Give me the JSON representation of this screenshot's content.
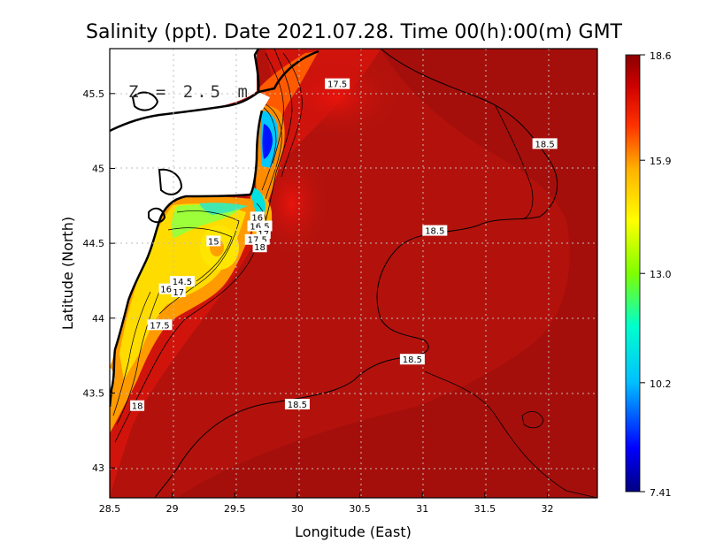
{
  "title": "Salinity (ppt). Date 2021.07.28. Time 00(h):00(m) GMT",
  "depth_label": "Z = 2.5 m",
  "xlabel": "Longitude (East)",
  "ylabel": "Latitude (North)",
  "chart_data": {
    "type": "heatmap",
    "title": "Salinity (ppt). Date 2021.07.28. Time 00(h):00(m) GMT",
    "xlabel": "Longitude (East)",
    "ylabel": "Latitude (North)",
    "xlim": [
      28.5,
      32.4
    ],
    "ylim": [
      42.8,
      45.8
    ],
    "x_ticks": [
      "28.5",
      "29",
      "29.5",
      "30",
      "30.5",
      "31",
      "31.5",
      "32"
    ],
    "y_ticks": [
      "43",
      "43.5",
      "44",
      "44.5",
      "45",
      "45.5"
    ],
    "grid": true,
    "colorbar": {
      "min": 7.41,
      "max": 18.6,
      "tick_labels": [
        "18.6",
        "15.9",
        "13.0",
        "10.2",
        "7.41"
      ],
      "colormap": [
        "#00007f",
        "#0000ff",
        "#00bfff",
        "#00ffcc",
        "#7fff00",
        "#ffff00",
        "#ffb000",
        "#ff3000",
        "#cc0000",
        "#8b0000"
      ]
    },
    "contour_labels": [
      {
        "text": "17.5",
        "lon": 30.32,
        "lat": 45.56
      },
      {
        "text": "18.5",
        "lon": 31.98,
        "lat": 45.16
      },
      {
        "text": "18.5",
        "lon": 31.1,
        "lat": 44.58
      },
      {
        "text": "18.5",
        "lon": 30.92,
        "lat": 43.72
      },
      {
        "text": "18.5",
        "lon": 30.0,
        "lat": 43.42
      },
      {
        "text": "17.5",
        "lon": 28.9,
        "lat": 43.95
      },
      {
        "text": "18",
        "lon": 28.72,
        "lat": 43.41
      },
      {
        "text": "15",
        "lon": 29.33,
        "lat": 44.51
      },
      {
        "text": "14.5",
        "lon": 29.08,
        "lat": 44.24
      },
      {
        "text": "16",
        "lon": 28.95,
        "lat": 44.19
      },
      {
        "text": "17",
        "lon": 29.05,
        "lat": 44.17
      },
      {
        "text": "16",
        "lon": 29.68,
        "lat": 44.67
      },
      {
        "text": "16.5",
        "lon": 29.7,
        "lat": 44.61
      },
      {
        "text": "17",
        "lon": 29.73,
        "lat": 44.56
      },
      {
        "text": "17.5",
        "lon": 29.68,
        "lat": 44.52
      },
      {
        "text": "18",
        "lon": 29.7,
        "lat": 44.47
      }
    ]
  }
}
